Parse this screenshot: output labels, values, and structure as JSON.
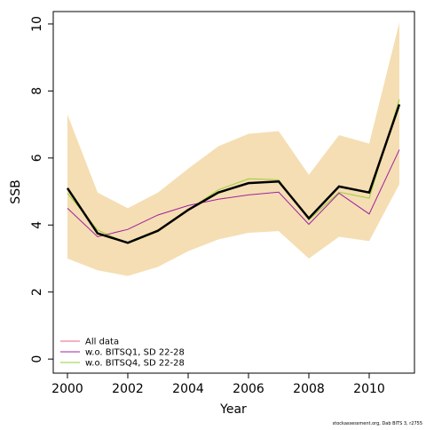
{
  "chart_data": {
    "type": "line",
    "x_label": "Year",
    "y_label": "SSB",
    "x": [
      2000,
      2001,
      2002,
      2003,
      2004,
      2005,
      2006,
      2007,
      2008,
      2009,
      2010,
      2011
    ],
    "band": {
      "color": "#f5deb3",
      "lower": [
        3.0,
        2.65,
        2.48,
        2.75,
        3.22,
        3.57,
        3.77,
        3.82,
        3.0,
        3.65,
        3.52,
        5.22
      ],
      "upper": [
        7.3,
        4.97,
        4.5,
        4.97,
        5.68,
        6.35,
        6.72,
        6.8,
        5.5,
        6.68,
        6.43,
        10.05
      ]
    },
    "series": [
      {
        "name": "All data",
        "color": "#000000",
        "legend_color": "#e8608a",
        "width": 2.5,
        "values": [
          5.1,
          3.75,
          3.47,
          3.83,
          4.45,
          4.97,
          5.25,
          5.3,
          4.2,
          5.15,
          4.97,
          7.6
        ]
      },
      {
        "name": "w.o. BITSQ1, SD 22-28",
        "color": "#a020a0",
        "width": 1,
        "values": [
          4.5,
          3.65,
          3.87,
          4.3,
          4.58,
          4.77,
          4.9,
          4.98,
          4.02,
          4.95,
          4.33,
          6.25
        ]
      },
      {
        "name": "w.o. BITSQ4, SD 22-28",
        "color": "#9acd32",
        "width": 1,
        "values": [
          4.95,
          3.85,
          3.45,
          3.8,
          4.45,
          5.05,
          5.38,
          5.35,
          4.15,
          4.98,
          4.8,
          7.75
        ]
      }
    ],
    "xlim": [
      1999.53,
      2011.5
    ],
    "ylim": [
      -0.42,
      10.37
    ],
    "xticks": [
      2000,
      2002,
      2004,
      2006,
      2008,
      2010
    ],
    "yticks": [
      0,
      2,
      4,
      6,
      8,
      10
    ],
    "legend": "bottom-left",
    "footer": "stockassessment.org, Dab BITS 3, r2755"
  }
}
